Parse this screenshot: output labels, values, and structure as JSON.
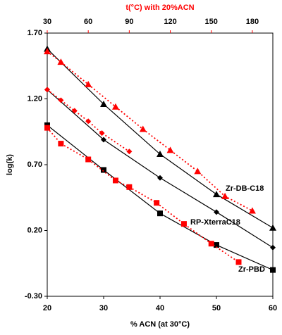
{
  "chart_data": {
    "type": "line",
    "title": "t(°C) with 20%ACN",
    "x_label": "% ACN (at 30°C)",
    "y_label": "log(k)",
    "xlim": [
      20,
      60
    ],
    "xticks": [
      20,
      30,
      40,
      50,
      60
    ],
    "x2lim": [
      30,
      195
    ],
    "x2ticks": [
      30,
      60,
      90,
      120,
      150,
      180
    ],
    "x2_color": "#ff0000",
    "ylim": [
      -0.3,
      1.7
    ],
    "yticks": [
      {
        "value": -0.3,
        "label": "-0.30"
      },
      {
        "value": 0.2,
        "label": "0.20"
      },
      {
        "value": 0.7,
        "label": "0.70"
      },
      {
        "value": 1.2,
        "label": "1.20"
      },
      {
        "value": 1.7,
        "label": "1.70"
      }
    ],
    "grid": false,
    "series": [
      {
        "name": "Zr-DB-C18",
        "color": "#000000",
        "marker": "triangle",
        "line": "solid",
        "x": [
          20,
          30,
          40,
          50,
          60
        ],
        "values": [
          1.58,
          1.16,
          0.78,
          0.475,
          0.22
        ]
      },
      {
        "name": "RP-XterraC18",
        "color": "#000000",
        "marker": "diamond",
        "line": "solid",
        "x": [
          20,
          30,
          40,
          50,
          60
        ],
        "values": [
          1.27,
          0.89,
          0.6,
          0.34,
          0.07
        ]
      },
      {
        "name": "Zr-PBD",
        "color": "#000000",
        "marker": "square",
        "line": "solid",
        "x": [
          20,
          30,
          40,
          50,
          60
        ],
        "values": [
          1.0,
          0.66,
          0.33,
          0.09,
          -0.1
        ]
      },
      {
        "color": "#ff0000",
        "marker": "triangle",
        "line": "dotted",
        "axis": "x2",
        "x": [
          30,
          40,
          60,
          80,
          100,
          120,
          140,
          160,
          180
        ],
        "values": [
          1.56,
          1.48,
          1.31,
          1.14,
          0.97,
          0.81,
          0.65,
          0.46,
          0.35
        ]
      },
      {
        "color": "#ff0000",
        "marker": "diamond",
        "line": "dotted",
        "axis": "x2",
        "x": [
          30,
          40,
          50,
          60,
          70,
          90
        ],
        "values": [
          1.27,
          1.19,
          1.11,
          1.03,
          0.94,
          0.8
        ]
      },
      {
        "color": "#ff0000",
        "marker": "square",
        "line": "dotted",
        "axis": "x2",
        "x": [
          30,
          40,
          60,
          80,
          90,
          110,
          130,
          150,
          170
        ],
        "values": [
          0.98,
          0.86,
          0.74,
          0.58,
          0.53,
          0.41,
          0.25,
          0.1,
          -0.04
        ]
      }
    ]
  }
}
